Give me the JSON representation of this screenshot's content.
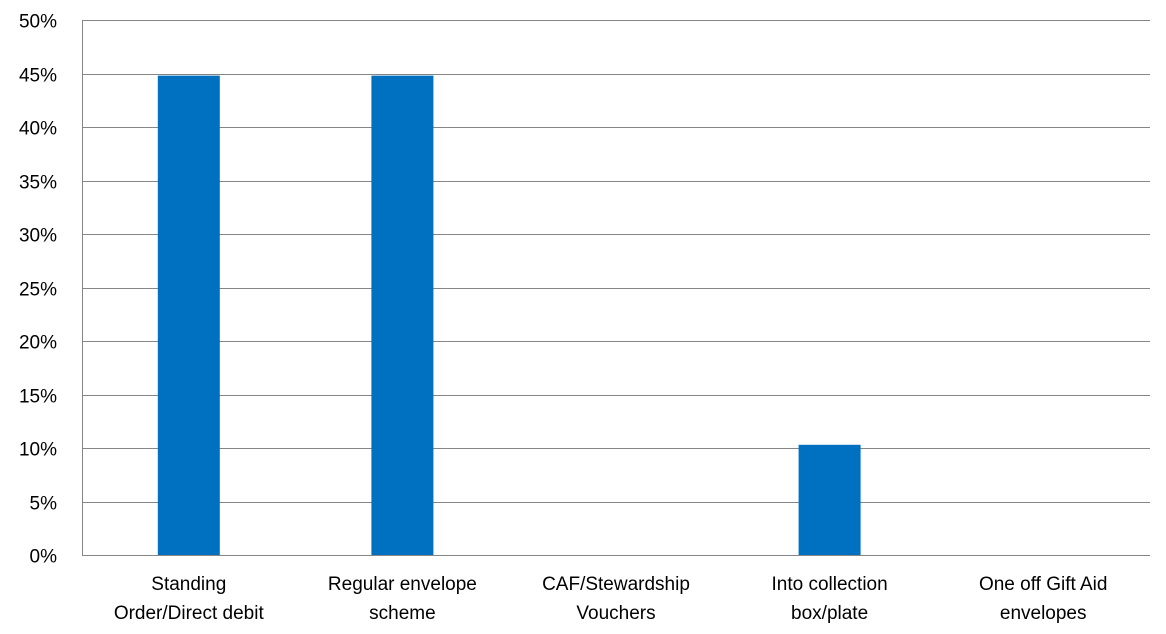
{
  "chart_data": {
    "type": "bar",
    "title": "",
    "xlabel": "",
    "ylabel": "",
    "categories": [
      [
        "Standing",
        "Order/Direct debit"
      ],
      [
        "Regular envelope",
        "scheme"
      ],
      [
        "CAF/Stewardship",
        "Vouchers"
      ],
      [
        "Into collection",
        "box/plate"
      ],
      [
        "One off Gift Aid",
        "envelopes"
      ]
    ],
    "values": [
      44.8,
      44.8,
      0,
      10.3,
      0
    ],
    "ylim": [
      0,
      50
    ],
    "yticks": [
      0,
      5,
      10,
      15,
      20,
      25,
      30,
      35,
      40,
      45,
      50
    ],
    "ytick_labels": [
      "0%",
      "5%",
      "10%",
      "15%",
      "20%",
      "25%",
      "30%",
      "35%",
      "40%",
      "45%",
      "50%"
    ],
    "grid": true,
    "legend": "none",
    "bar_color": "#0070C0",
    "grid_color": "#868686"
  }
}
